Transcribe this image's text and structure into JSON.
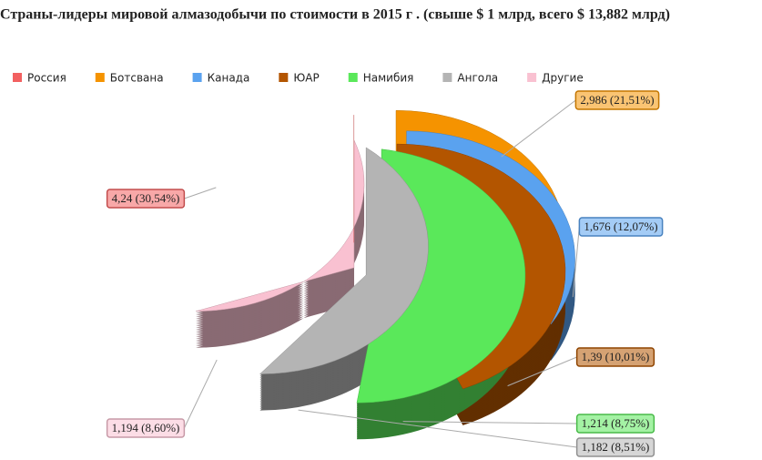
{
  "chart_data": {
    "type": "pie",
    "title": "Страны-лидеры мировой алмазодобычи по стоимости в 2015 г . (свыше $ 1 млрд, всего $ 13,882 млрд)",
    "categories": [
      "Россия",
      "Ботсвана",
      "Канада",
      "ЮАР",
      "Намибия",
      "Ангола",
      "Другие"
    ],
    "values": [
      4.24,
      2.986,
      1.676,
      1.39,
      1.214,
      1.182,
      1.194
    ],
    "value_labels": [
      "4,24 (30,54%)",
      "2,986 (21,51%)",
      "1,676 (12,07%)",
      "1,39 (10,01%)",
      "1,214 (8,75%)",
      "1,182 (8,51%)",
      "1,194 (8,60%)"
    ],
    "colors": [
      "#f26060",
      "#f59300",
      "#5aa2ef",
      "#b35500",
      "#5ae85a",
      "#b4b4b4",
      "#f9c1d1"
    ],
    "legend": "top"
  }
}
